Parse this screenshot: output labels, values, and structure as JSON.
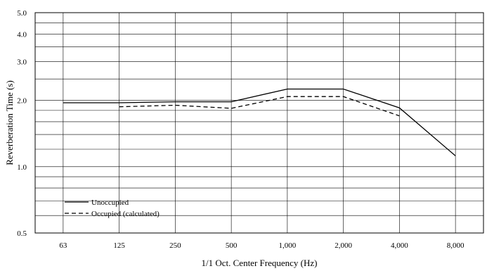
{
  "chart_data": {
    "type": "line",
    "title": "",
    "xlabel": "1/1 Oct. Center Frequency (Hz)",
    "ylabel": "Reverberation Time (s)",
    "x_scale": "categorical",
    "y_scale": "log",
    "categories": [
      "63",
      "125",
      "250",
      "500",
      "1,000",
      "2,000",
      "4,000",
      "8,000"
    ],
    "y_ticks": [
      "0.5",
      "1.0",
      "2.0",
      "3.0",
      "4.0",
      "5.0"
    ],
    "ylim": [
      0.5,
      5.0
    ],
    "grid": true,
    "legend_position": "bottom-left",
    "series": [
      {
        "name": "Unoccupied",
        "style": "solid",
        "color": "#000000",
        "values": [
          1.95,
          1.95,
          1.97,
          1.97,
          2.25,
          2.25,
          1.85,
          1.12
        ]
      },
      {
        "name": "Occupied (calculated)",
        "style": "dashed",
        "color": "#000000",
        "values": [
          null,
          1.87,
          1.9,
          1.84,
          2.08,
          2.08,
          1.7,
          null
        ]
      }
    ]
  }
}
